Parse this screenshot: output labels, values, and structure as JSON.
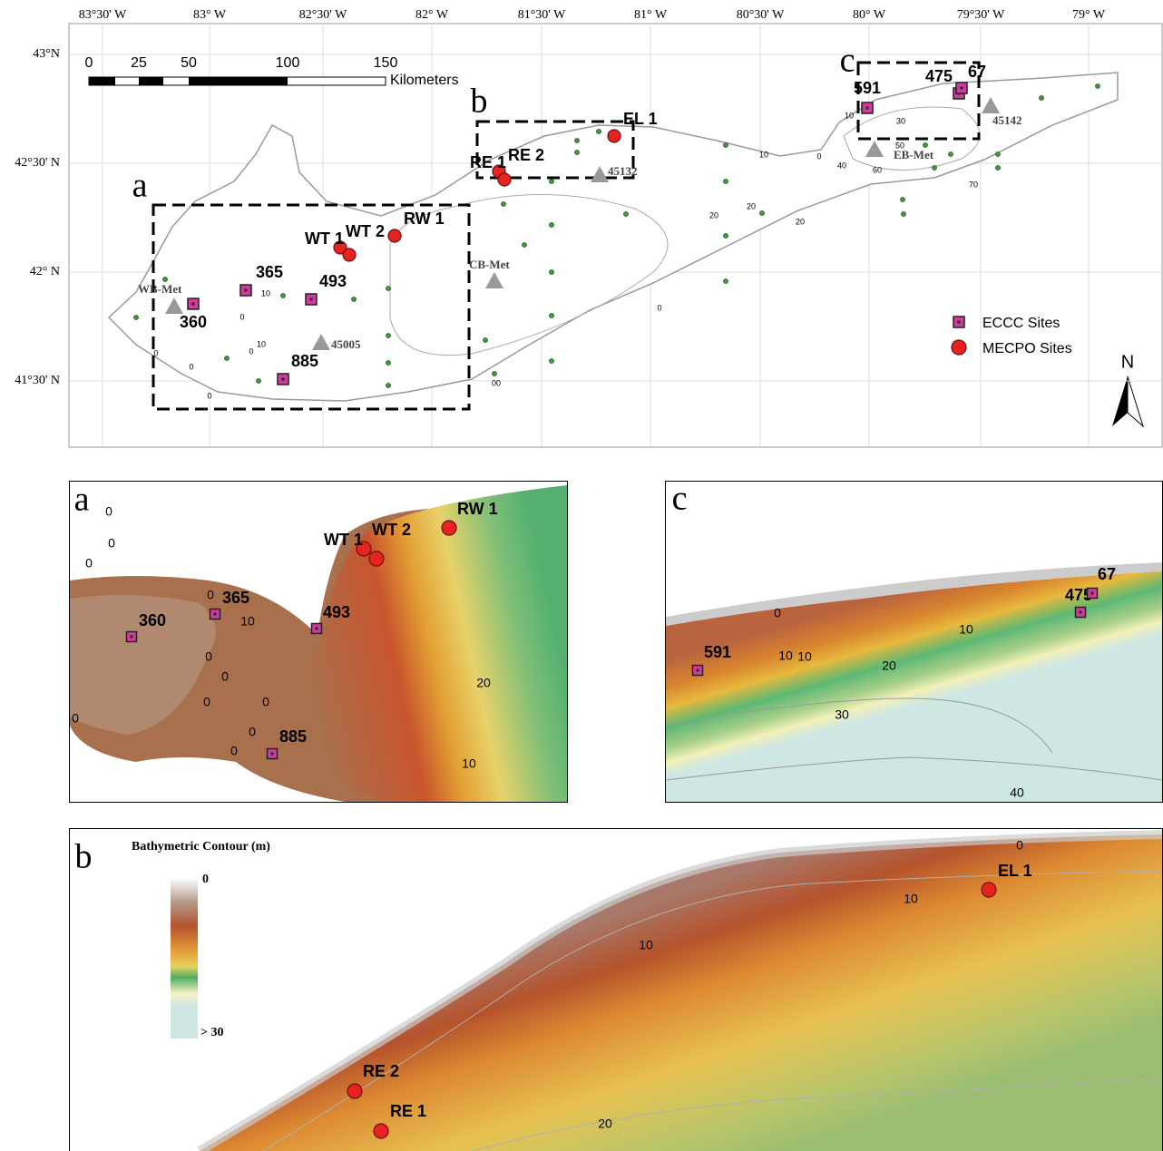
{
  "overview": {
    "lon_labels": [
      "83°30' W",
      "83° W",
      "82°30' W",
      "82° W",
      "81°30' W",
      "81° W",
      "80°30' W",
      "80° W",
      "79°30' W",
      "79° W"
    ],
    "lat_labels": [
      "43°N",
      "42°30' N",
      "42° N",
      "41°30' N"
    ],
    "scale_bar": {
      "ticks": [
        "0",
        "25",
        "50",
        "100",
        "150"
      ],
      "unit": "Kilometers"
    },
    "boxes": [
      "a",
      "b",
      "c"
    ],
    "eccc_sites": [
      "360",
      "365",
      "493",
      "885",
      "591",
      "475",
      "67"
    ],
    "mecpo_sites": [
      "WT 1",
      "WT 2",
      "RW 1",
      "RE 1",
      "RE 2",
      "EL 1"
    ],
    "met_stations": [
      "WB-Met",
      "45005",
      "CB-Met",
      "45132",
      "EB-Met",
      "45142"
    ],
    "contour_labels": [
      "10",
      "0",
      "0",
      "0",
      "10",
      "0",
      "0",
      "10",
      "30",
      "50",
      "40",
      "60",
      "70",
      "10",
      "20",
      "20",
      "20",
      "0",
      "00",
      "0"
    ],
    "legend": {
      "eccc": "ECCC Sites",
      "mecpo": "MECPO Sites"
    },
    "north": "N"
  },
  "panel_a": {
    "label": "a",
    "eccc_sites": [
      "360",
      "365",
      "493",
      "885"
    ],
    "mecpo_sites": [
      "WT 1",
      "WT 2",
      "RW 1"
    ],
    "contour_labels": [
      "0",
      "0",
      "0",
      "0",
      "10",
      "0",
      "0",
      "0",
      "0",
      "0",
      "0",
      "0",
      "20",
      "10"
    ]
  },
  "panel_c": {
    "label": "c",
    "eccc_sites": [
      "591",
      "475",
      "67"
    ],
    "contour_labels": [
      "0",
      "10",
      "10",
      "10",
      "20",
      "30",
      "40"
    ]
  },
  "panel_b": {
    "label": "b",
    "legend": {
      "title": "Bathymetric Contour (m)",
      "min": "0",
      "max": "> 30"
    },
    "mecpo_sites": [
      "EL 1",
      "RE 2",
      "RE 1"
    ],
    "contour_labels": [
      "0",
      "10",
      "10",
      "20"
    ]
  }
}
